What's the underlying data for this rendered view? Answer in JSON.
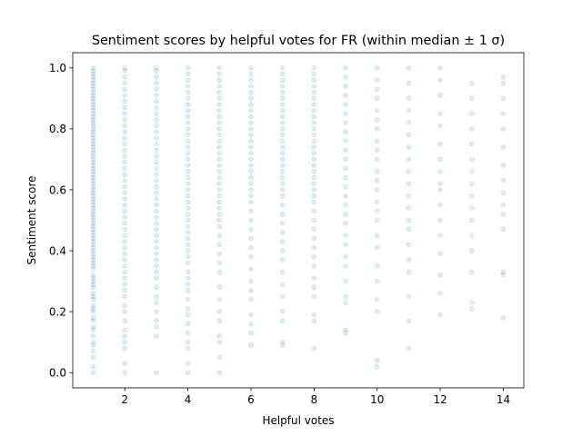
{
  "chart_data": {
    "type": "scatter",
    "title": "Sentiment scores by helpful votes for FR (within median ± 1 σ)",
    "xlabel": "Helpful votes",
    "ylabel": "Sentiment score",
    "xlim": [
      0.35,
      14.65
    ],
    "ylim": [
      -0.05,
      1.05
    ],
    "xticks": [
      2,
      4,
      6,
      8,
      10,
      12,
      14
    ],
    "yticks": [
      0.0,
      0.2,
      0.4,
      0.6,
      0.8,
      1.0
    ],
    "xtick_labels": [
      "2",
      "4",
      "6",
      "8",
      "10",
      "12",
      "14"
    ],
    "ytick_labels": [
      "0.0",
      "0.2",
      "0.4",
      "0.6",
      "0.8",
      "1.0"
    ],
    "grid": false,
    "legend": "none",
    "marker_color": "#1f77b4",
    "marker_alpha": 0.15,
    "series": [
      {
        "x": 1,
        "y": [
          0.0,
          0.02,
          0.05,
          0.07,
          0.09,
          0.1,
          0.12,
          0.14,
          0.15,
          0.17,
          0.18,
          0.2,
          0.21,
          0.22,
          0.24,
          0.25,
          0.26,
          0.28,
          0.29,
          0.3,
          0.31,
          0.32,
          0.34,
          0.35,
          0.36,
          0.37,
          0.38,
          0.39,
          0.4,
          0.41,
          0.42,
          0.43,
          0.44,
          0.45,
          0.46,
          0.47,
          0.48,
          0.49,
          0.5,
          0.51,
          0.52,
          0.53,
          0.54,
          0.55,
          0.56,
          0.57,
          0.58,
          0.59,
          0.6,
          0.61,
          0.62,
          0.63,
          0.64,
          0.65,
          0.66,
          0.67,
          0.68,
          0.69,
          0.7,
          0.71,
          0.72,
          0.73,
          0.74,
          0.75,
          0.76,
          0.77,
          0.78,
          0.79,
          0.8,
          0.81,
          0.82,
          0.83,
          0.84,
          0.85,
          0.86,
          0.87,
          0.88,
          0.89,
          0.9,
          0.91,
          0.92,
          0.93,
          0.94,
          0.95,
          0.96,
          0.97,
          0.98,
          0.99,
          1.0
        ]
      },
      {
        "x": 2,
        "y": [
          0.0,
          0.03,
          0.08,
          0.1,
          0.12,
          0.14,
          0.17,
          0.2,
          0.22,
          0.25,
          0.27,
          0.29,
          0.31,
          0.33,
          0.35,
          0.37,
          0.39,
          0.41,
          0.43,
          0.45,
          0.47,
          0.49,
          0.51,
          0.53,
          0.55,
          0.57,
          0.59,
          0.61,
          0.63,
          0.65,
          0.67,
          0.69,
          0.71,
          0.73,
          0.75,
          0.77,
          0.79,
          0.81,
          0.83,
          0.85,
          0.87,
          0.89,
          0.91,
          0.93,
          0.95,
          0.97,
          0.99,
          1.0
        ]
      },
      {
        "x": 3,
        "y": [
          0.0,
          0.12,
          0.15,
          0.17,
          0.2,
          0.23,
          0.25,
          0.28,
          0.31,
          0.33,
          0.35,
          0.37,
          0.39,
          0.41,
          0.43,
          0.45,
          0.47,
          0.49,
          0.51,
          0.53,
          0.55,
          0.57,
          0.59,
          0.61,
          0.63,
          0.65,
          0.67,
          0.69,
          0.71,
          0.73,
          0.75,
          0.77,
          0.79,
          0.81,
          0.83,
          0.85,
          0.87,
          0.89,
          0.91,
          0.93,
          0.95,
          0.97,
          0.99,
          1.0
        ]
      },
      {
        "x": 4,
        "y": [
          0.0,
          0.03,
          0.08,
          0.1,
          0.13,
          0.16,
          0.19,
          0.21,
          0.24,
          0.27,
          0.29,
          0.31,
          0.33,
          0.36,
          0.38,
          0.4,
          0.42,
          0.44,
          0.46,
          0.48,
          0.5,
          0.52,
          0.54,
          0.56,
          0.58,
          0.6,
          0.62,
          0.64,
          0.66,
          0.68,
          0.7,
          0.72,
          0.74,
          0.76,
          0.78,
          0.8,
          0.82,
          0.84,
          0.86,
          0.88,
          0.9,
          0.92,
          0.94,
          0.96,
          0.98,
          1.0
        ]
      },
      {
        "x": 5,
        "y": [
          0.0,
          0.05,
          0.1,
          0.12,
          0.17,
          0.2,
          0.24,
          0.28,
          0.33,
          0.36,
          0.39,
          0.42,
          0.45,
          0.48,
          0.5,
          0.52,
          0.54,
          0.56,
          0.58,
          0.6,
          0.62,
          0.64,
          0.66,
          0.68,
          0.7,
          0.72,
          0.74,
          0.76,
          0.78,
          0.8,
          0.82,
          0.84,
          0.86,
          0.88,
          0.9,
          0.92,
          0.94,
          0.96,
          0.98,
          1.0
        ]
      },
      {
        "x": 6,
        "y": [
          0.09,
          0.13,
          0.16,
          0.19,
          0.24,
          0.27,
          0.3,
          0.34,
          0.38,
          0.41,
          0.44,
          0.47,
          0.5,
          0.53,
          0.56,
          0.58,
          0.6,
          0.62,
          0.64,
          0.66,
          0.68,
          0.7,
          0.72,
          0.74,
          0.76,
          0.78,
          0.8,
          0.82,
          0.84,
          0.86,
          0.88,
          0.9,
          0.92,
          0.94,
          0.96,
          0.98,
          1.0
        ]
      },
      {
        "x": 7,
        "y": [
          0.09,
          0.1,
          0.17,
          0.2,
          0.25,
          0.29,
          0.33,
          0.37,
          0.4,
          0.43,
          0.46,
          0.49,
          0.52,
          0.55,
          0.58,
          0.6,
          0.62,
          0.64,
          0.66,
          0.68,
          0.7,
          0.72,
          0.74,
          0.76,
          0.78,
          0.8,
          0.82,
          0.84,
          0.86,
          0.88,
          0.9,
          0.92,
          0.94,
          0.96,
          0.98,
          1.0
        ]
      },
      {
        "x": 8,
        "y": [
          0.08,
          0.17,
          0.19,
          0.25,
          0.28,
          0.31,
          0.35,
          0.38,
          0.41,
          0.44,
          0.47,
          0.5,
          0.53,
          0.56,
          0.58,
          0.6,
          0.62,
          0.64,
          0.66,
          0.68,
          0.7,
          0.72,
          0.74,
          0.76,
          0.78,
          0.8,
          0.82,
          0.84,
          0.86,
          0.88,
          0.9,
          0.92,
          0.94,
          0.96,
          0.98,
          1.0
        ]
      },
      {
        "x": 9,
        "y": [
          0.13,
          0.14,
          0.23,
          0.25,
          0.3,
          0.35,
          0.38,
          0.42,
          0.45,
          0.49,
          0.52,
          0.55,
          0.58,
          0.61,
          0.64,
          0.67,
          0.7,
          0.73,
          0.76,
          0.79,
          0.82,
          0.85,
          0.88,
          0.91,
          0.94,
          0.97,
          1.0
        ]
      },
      {
        "x": 10,
        "y": [
          0.02,
          0.04,
          0.2,
          0.24,
          0.3,
          0.35,
          0.41,
          0.45,
          0.5,
          0.53,
          0.56,
          0.6,
          0.63,
          0.66,
          0.7,
          0.73,
          0.76,
          0.8,
          0.83,
          0.86,
          0.9,
          0.93,
          0.96,
          1.0
        ]
      },
      {
        "x": 11,
        "y": [
          0.08,
          0.17,
          0.25,
          0.33,
          0.37,
          0.42,
          0.47,
          0.5,
          0.54,
          0.58,
          0.62,
          0.66,
          0.7,
          0.74,
          0.78,
          0.82,
          0.86,
          0.9,
          0.95,
          1.0
        ]
      },
      {
        "x": 12,
        "y": [
          0.19,
          0.26,
          0.32,
          0.39,
          0.45,
          0.5,
          0.55,
          0.6,
          0.62,
          0.66,
          0.7,
          0.75,
          0.81,
          0.85,
          0.91,
          0.96,
          1.0
        ]
      },
      {
        "x": 13,
        "y": [
          0.21,
          0.23,
          0.33,
          0.4,
          0.45,
          0.5,
          0.54,
          0.58,
          0.62,
          0.66,
          0.7,
          0.75,
          0.8,
          0.85,
          0.9,
          0.95
        ]
      },
      {
        "x": 14,
        "y": [
          0.18,
          0.32,
          0.33,
          0.47,
          0.52,
          0.55,
          0.59,
          0.63,
          0.68,
          0.74,
          0.8,
          0.85,
          0.9,
          0.95,
          0.97
        ]
      }
    ]
  }
}
